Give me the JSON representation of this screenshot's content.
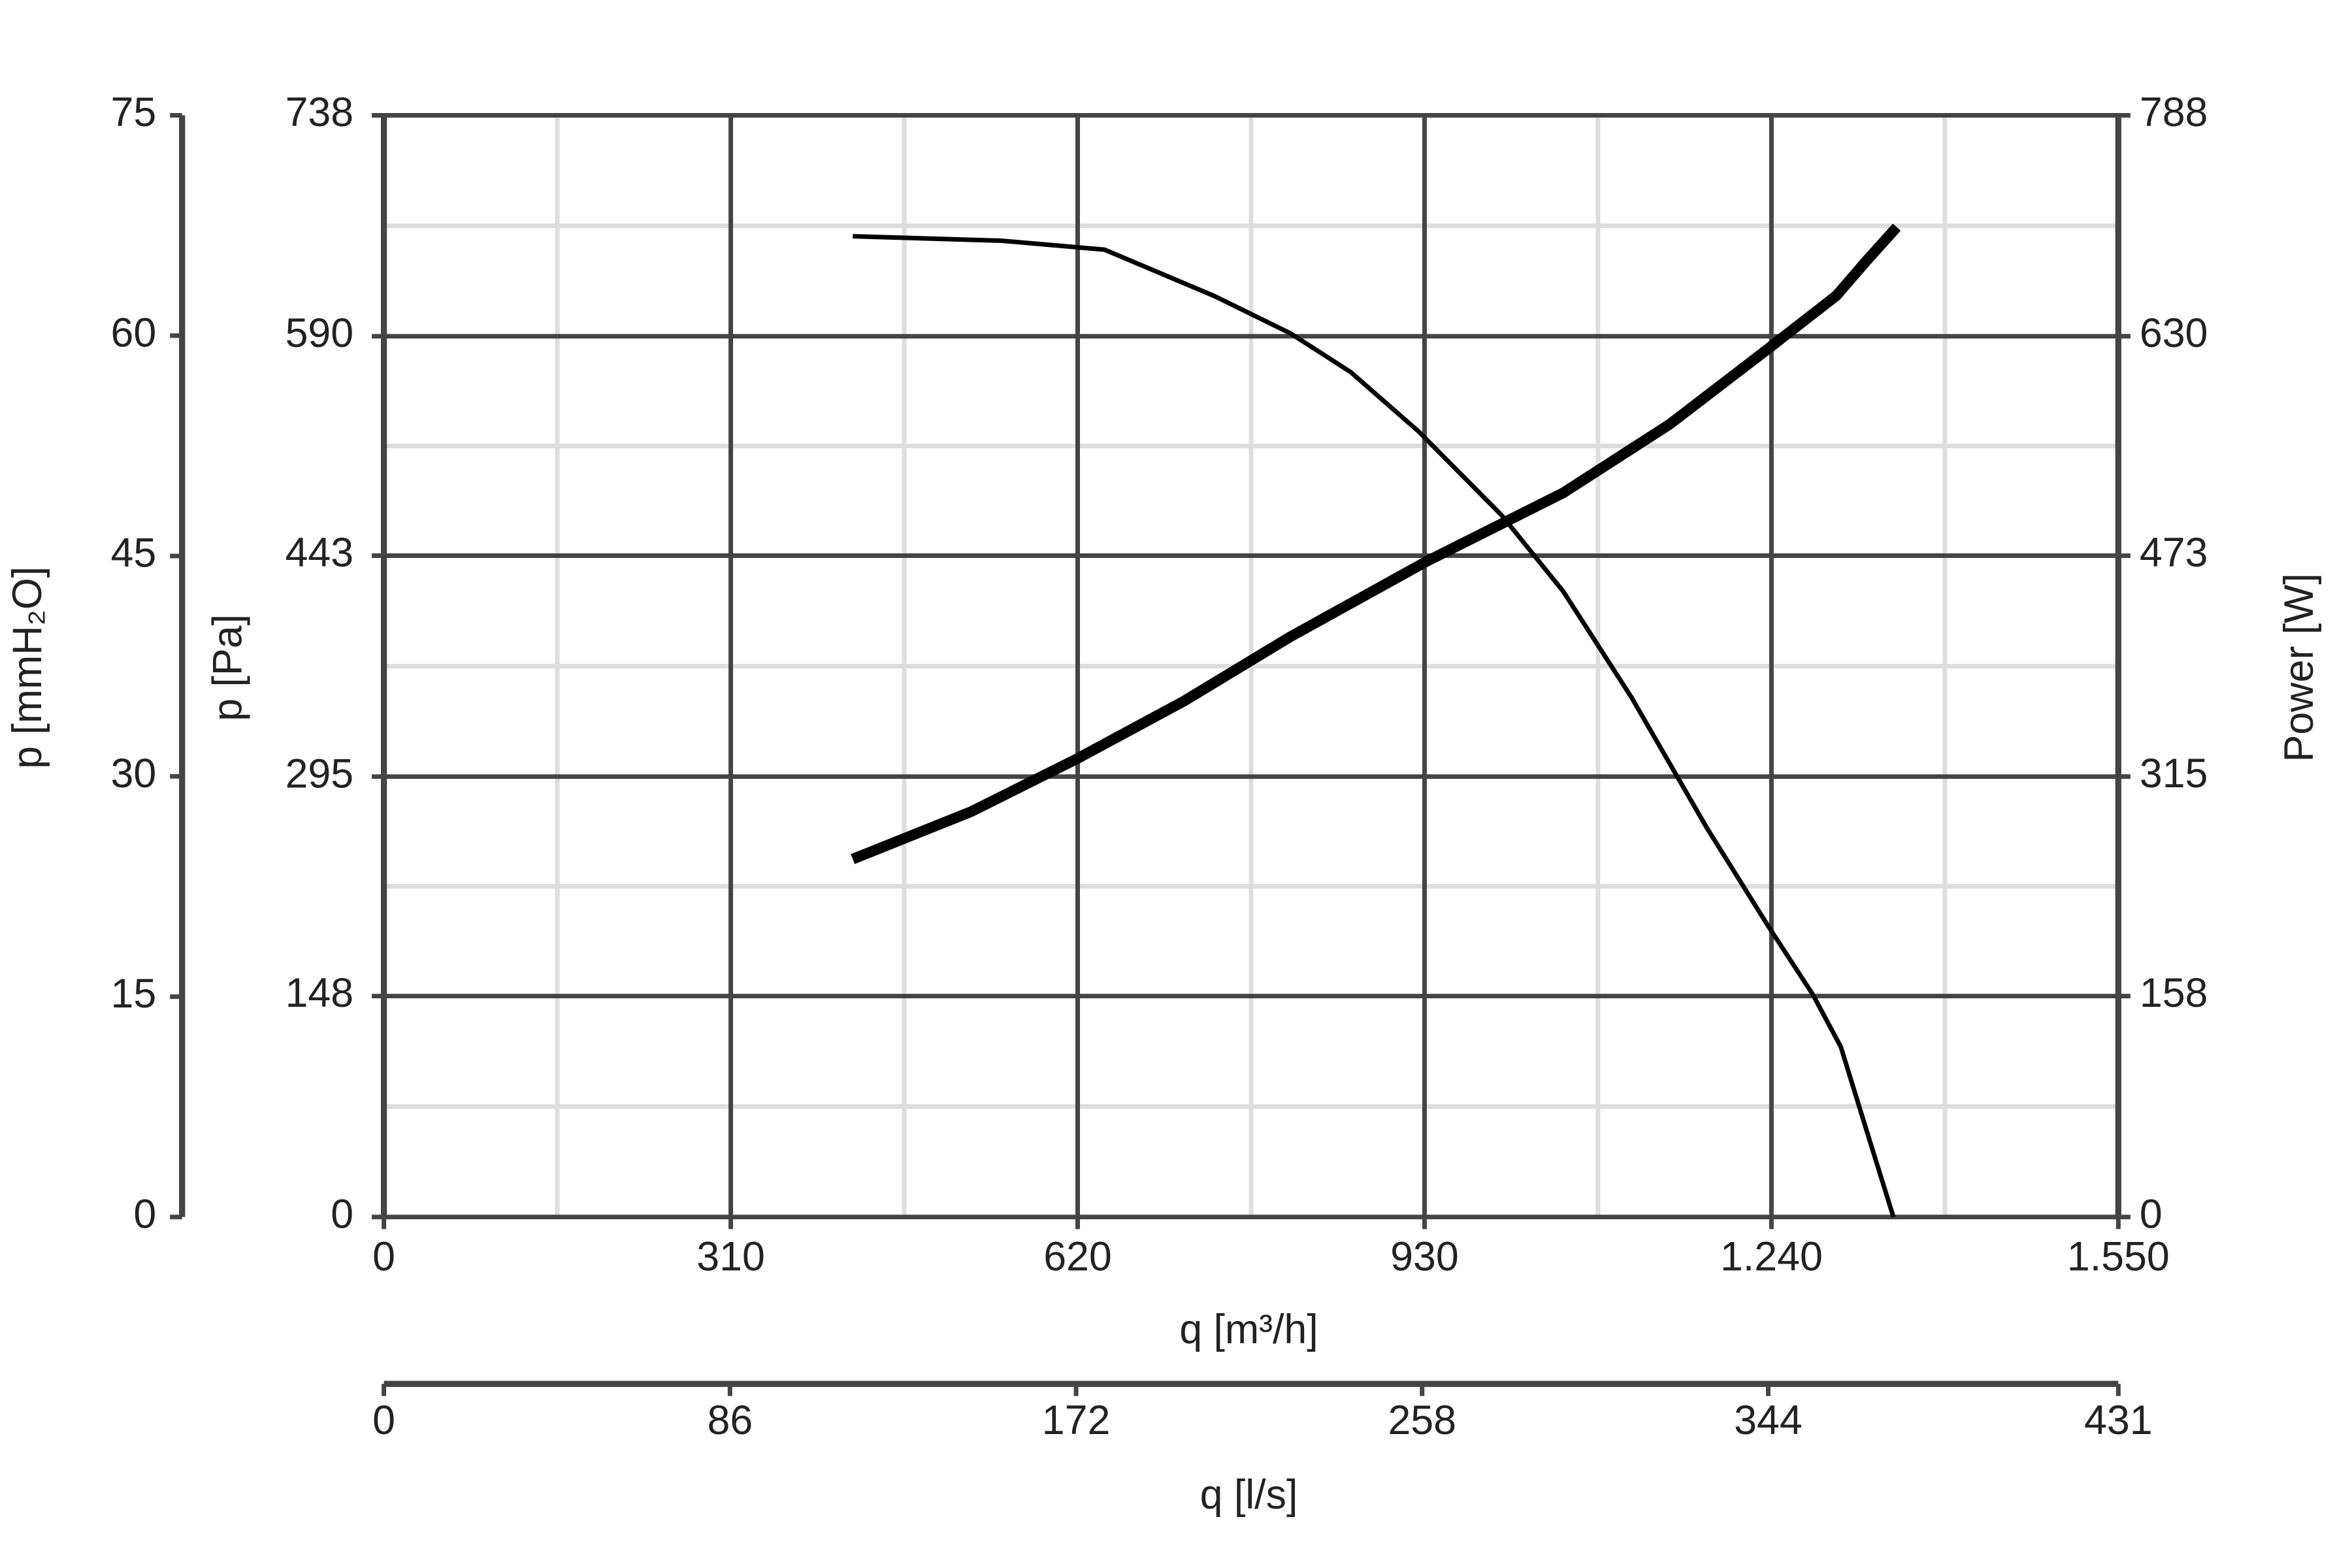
{
  "chart_data": {
    "type": "line",
    "xlabel": "q [m³/h]",
    "ylabel": "p [Pa]",
    "y2label": "Power [W]",
    "xlim": [
      0,
      1550
    ],
    "xticks": [
      0,
      310,
      620,
      930,
      {
        "value": 1240,
        "label": "1.240"
      },
      {
        "value": 1550,
        "label": "1.550"
      }
    ],
    "ylim": [
      0,
      738
    ],
    "yticks": [
      0,
      148,
      295,
      443,
      590,
      738
    ],
    "y2lim": [
      0,
      788
    ],
    "y2ticks": [
      0,
      158,
      315,
      473,
      630,
      788
    ],
    "mmh2o_axis": {
      "label": "p [mmH₂O]",
      "lim": [
        0,
        75
      ],
      "ticks": [
        0,
        15,
        30,
        45,
        60,
        75
      ]
    },
    "ls_axis": {
      "label": "q [l/s]",
      "lim": [
        0,
        431
      ],
      "ticks": [
        0,
        86,
        172,
        258,
        344,
        431
      ]
    },
    "grid": true,
    "minor_grid": true,
    "series": [
      {
        "color": "#000000",
        "width": 3,
        "x": [
          419,
          552,
          644,
          742,
          810,
          864,
          925,
          999,
          1054,
          1115,
          1182,
          1237,
          1277,
          1302,
          1325,
          1349
        ],
        "values": [
          657,
          654,
          648,
          617,
          592,
          566,
          526,
          470,
          419,
          348,
          261,
          195,
          149,
          114,
          58,
          0
        ]
      },
      {
        "color": "#000000",
        "width": 7,
        "axis": "y2",
        "x": [
          419,
          525,
          620,
          715,
          810,
          932,
          1054,
          1149,
          1237,
          1298,
          1325,
          1352
        ],
        "values": [
          256,
          290,
          328,
          369,
          415,
          469,
          518,
          567,
          621,
          659,
          684,
          708
        ]
      }
    ]
  }
}
